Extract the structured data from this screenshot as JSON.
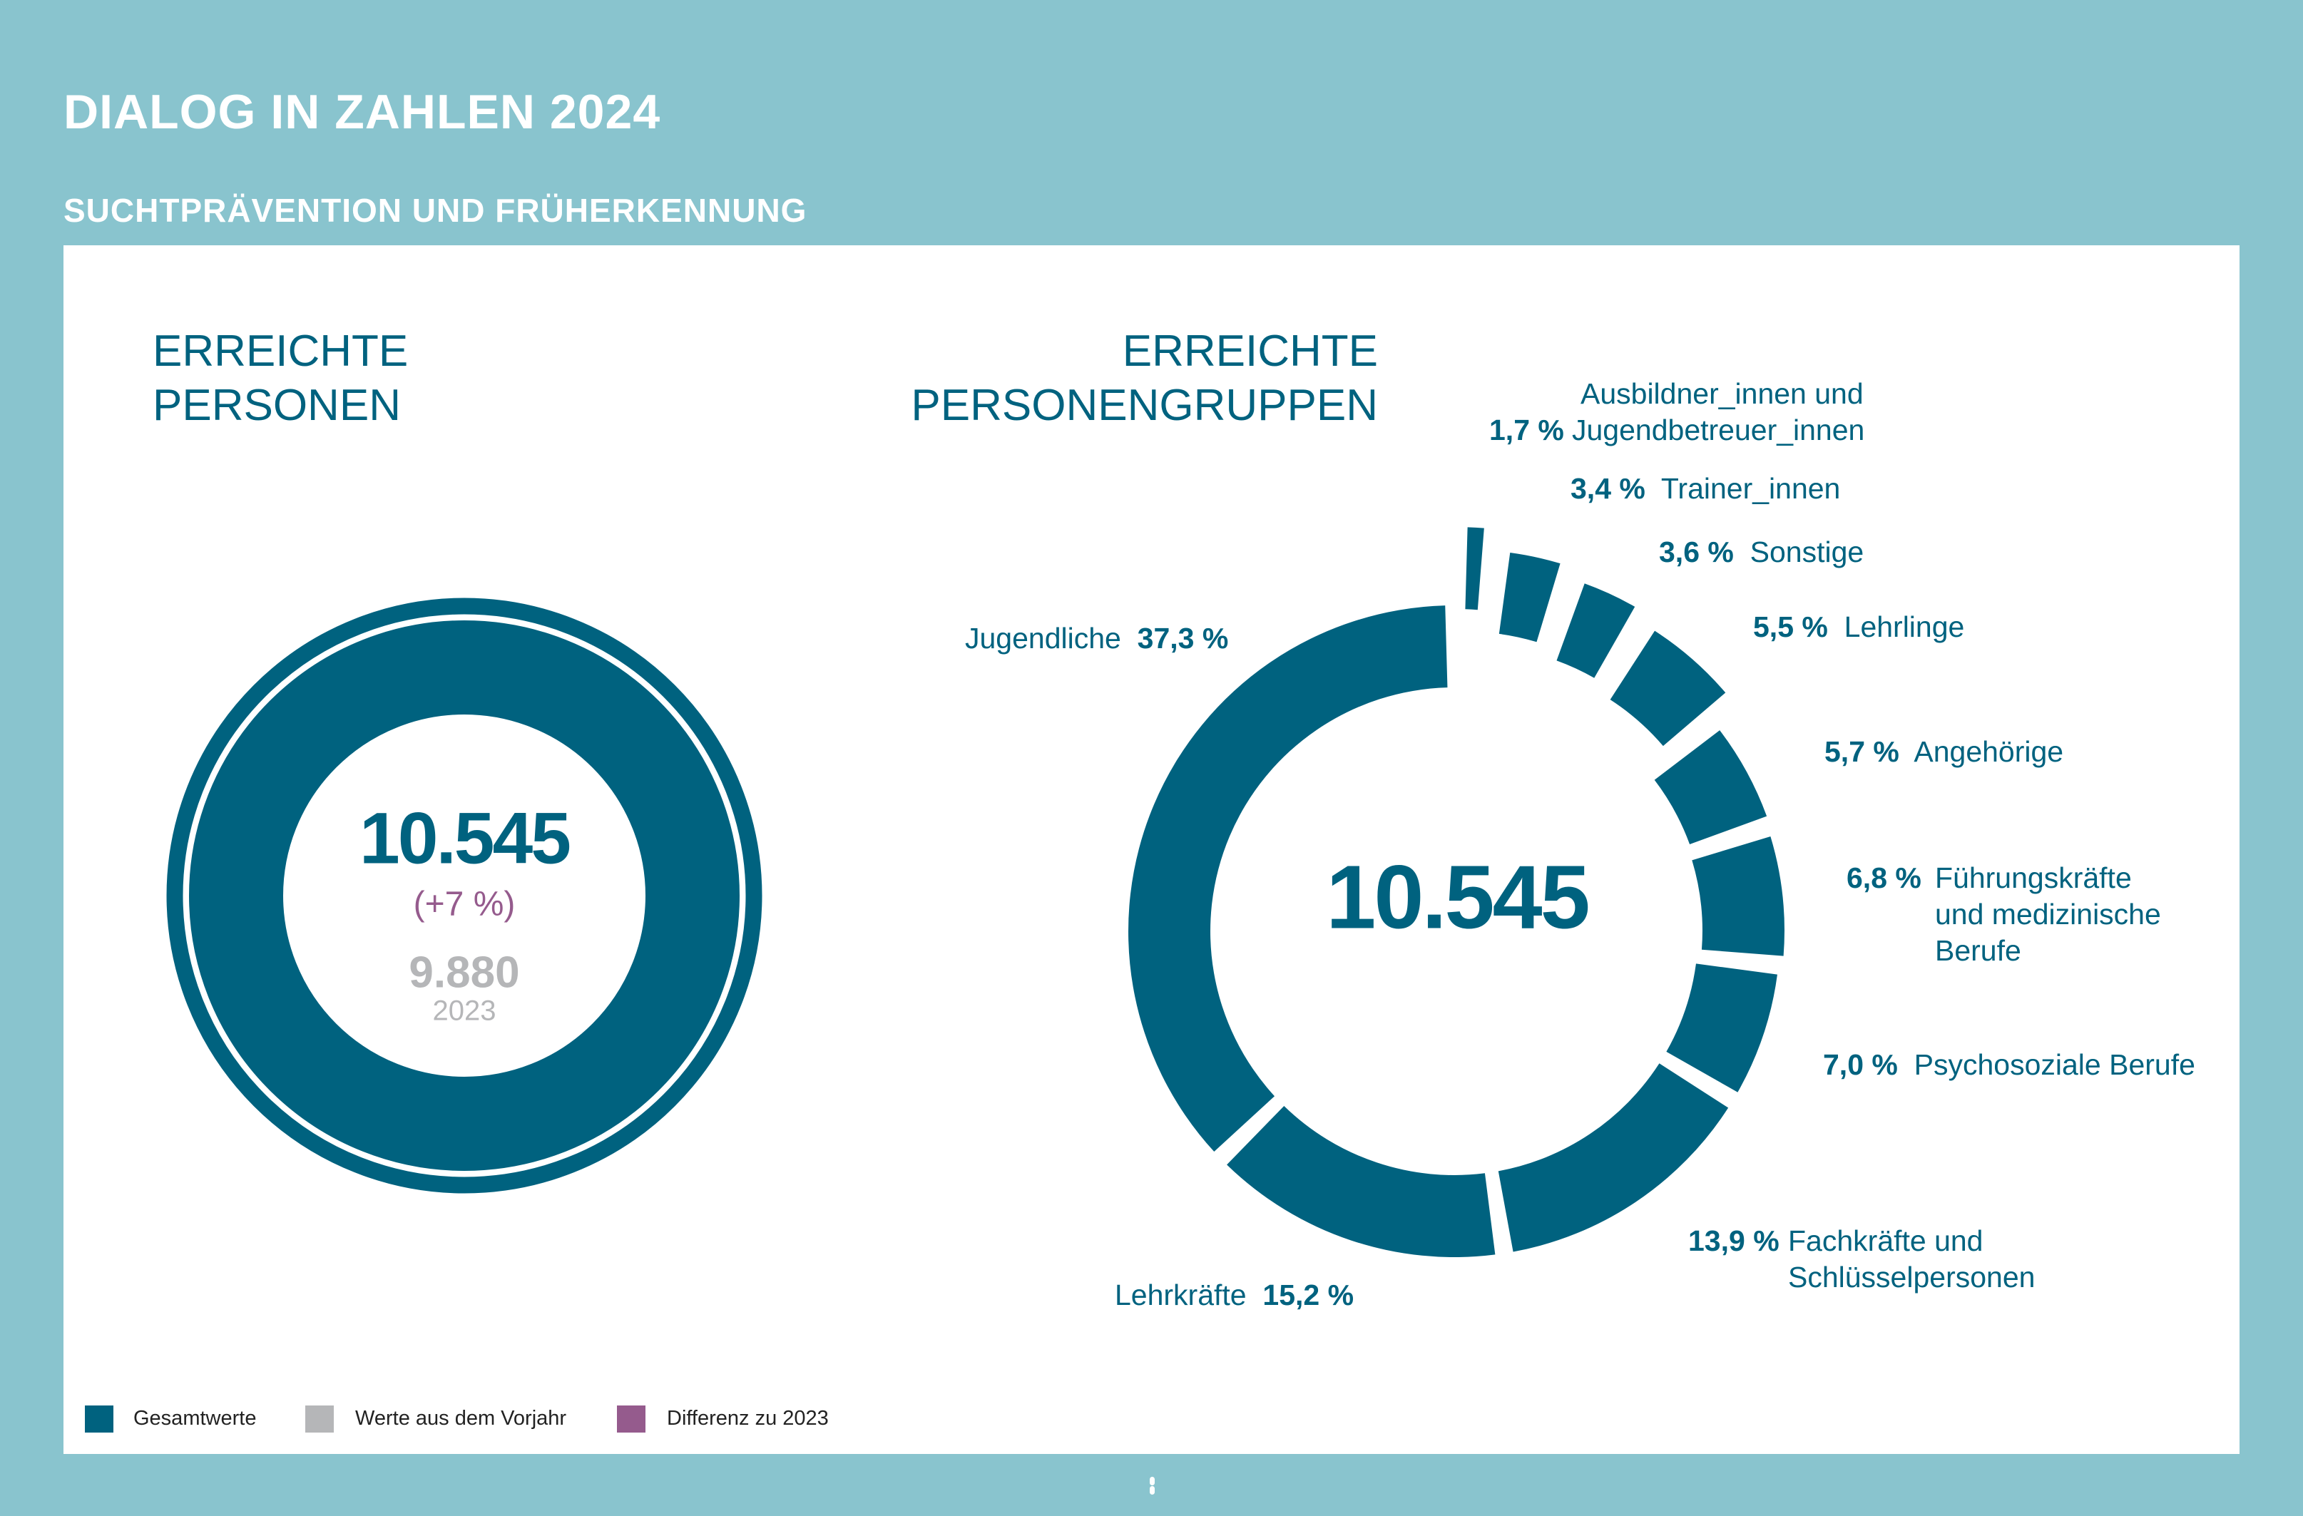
{
  "header": {
    "title": "DIALOG IN ZAHLEN 2024",
    "subtitle": "SUCHTPRÄVENTION UND FRÜHERKENNUNG"
  },
  "colors": {
    "background": "#89C4CE",
    "total": "#00627F",
    "previous_year": "#B5B6B8",
    "difference": "#955B8D"
  },
  "left": {
    "heading_line1": "ERREICHTE",
    "heading_line2": "PERSONEN",
    "total": "10.545",
    "change": "(+7 %)",
    "previous_value": "9.880",
    "previous_year": "2023"
  },
  "chart_data": {
    "type": "pie",
    "title": "ERREICHTE PERSONENGRUPPEN",
    "center_label": "10.545",
    "slices": [
      {
        "label": "Jugendliche",
        "display": "37,3 %",
        "value": 37.3
      },
      {
        "label": "Lehrkräfte",
        "display": "15,2 %",
        "value": 15.2
      },
      {
        "label": "Fachkräfte und Schlüsselpersonen",
        "lines": [
          "Fachkräfte und",
          "Schlüsselpersonen"
        ],
        "display": "13,9 %",
        "value": 13.9
      },
      {
        "label": "Psychosoziale Berufe",
        "display": "7,0 %",
        "value": 7.0
      },
      {
        "label": "Führungskräfte und medizinische Berufe",
        "lines": [
          "Führungskräfte",
          "und medizinische",
          "Berufe"
        ],
        "display": "6,8 %",
        "value": 6.8
      },
      {
        "label": "Angehörige",
        "display": "5,7 %",
        "value": 5.7
      },
      {
        "label": "Lehrlinge",
        "display": "5,5 %",
        "value": 5.5
      },
      {
        "label": "Sonstige",
        "display": "3,6 %",
        "value": 3.6
      },
      {
        "label": "Trainer_innen",
        "display": "3,4 %",
        "value": 3.4
      },
      {
        "label": "Ausbildner_innen und Jugendbetreuer_innen",
        "lines": [
          "Ausbildner_innen und",
          "Jugendbetreuer_innen"
        ],
        "display": "1,7 %",
        "value": 1.7
      }
    ]
  },
  "right": {
    "heading_line1": "ERREICHTE",
    "heading_line2": "PERSONENGRUPPEN"
  },
  "legend": [
    {
      "label": "Gesamtwerte",
      "color": "#00627F"
    },
    {
      "label": "Werte aus dem Vorjahr",
      "color": "#B5B6B8"
    },
    {
      "label": "Differenz zu 2023",
      "color": "#955B8D"
    }
  ]
}
